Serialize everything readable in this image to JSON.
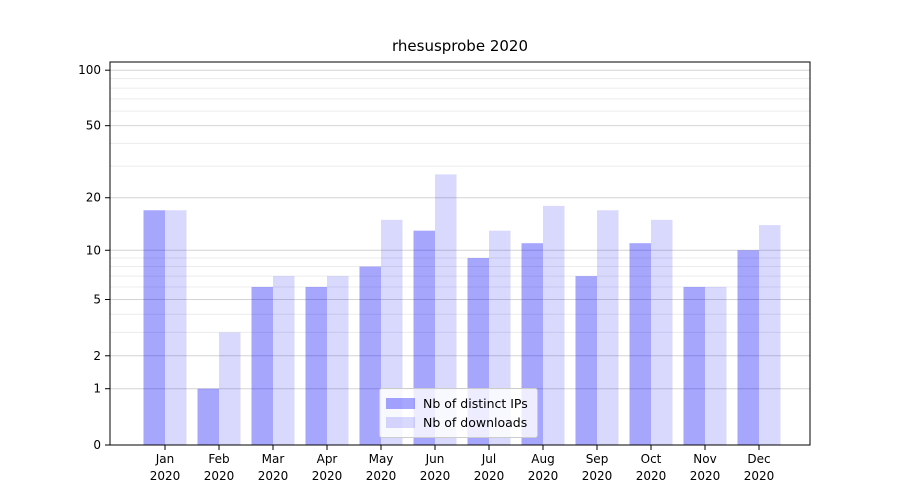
{
  "title": "rhesusprobe 2020",
  "colors": {
    "bar_distinct_ips": "#0000fa59",
    "bar_downloads": "#0000fa26",
    "grid_major": "#d4d4d4",
    "grid_minor": "#ececec",
    "axis": "#000000",
    "legend_border": "#cccccc"
  },
  "legend": {
    "position": "lower center",
    "items": [
      {
        "label": "Nb of distinct IPs"
      },
      {
        "label": "Nb of downloads"
      }
    ]
  },
  "chart_data": {
    "type": "bar",
    "title": "rhesusprobe 2020",
    "categories": [
      "Jan 2020",
      "Feb 2020",
      "Mar 2020",
      "Apr 2020",
      "May 2020",
      "Jun 2020",
      "Jul 2020",
      "Aug 2020",
      "Sep 2020",
      "Oct 2020",
      "Nov 2020",
      "Dec 2020"
    ],
    "series": [
      {
        "name": "Nb of distinct IPs",
        "color": "#0000fa59",
        "values": [
          17,
          1,
          6,
          6,
          8,
          13,
          9,
          11,
          7,
          11,
          6,
          10
        ]
      },
      {
        "name": "Nb of downloads",
        "color": "#0000fa26",
        "values": [
          17,
          3,
          7,
          7,
          15,
          27,
          13,
          18,
          17,
          15,
          6,
          14
        ]
      }
    ],
    "xlabel": "",
    "ylabel": "",
    "yscale": "log1p",
    "yticks": [
      0,
      1,
      2,
      5,
      10,
      20,
      50,
      100
    ],
    "minor_grid_values": [
      3,
      4,
      6,
      7,
      8,
      9,
      30,
      40,
      60,
      70,
      80,
      90
    ],
    "ylim": [
      0,
      111
    ],
    "grid": true,
    "legend_position": "lower center"
  }
}
